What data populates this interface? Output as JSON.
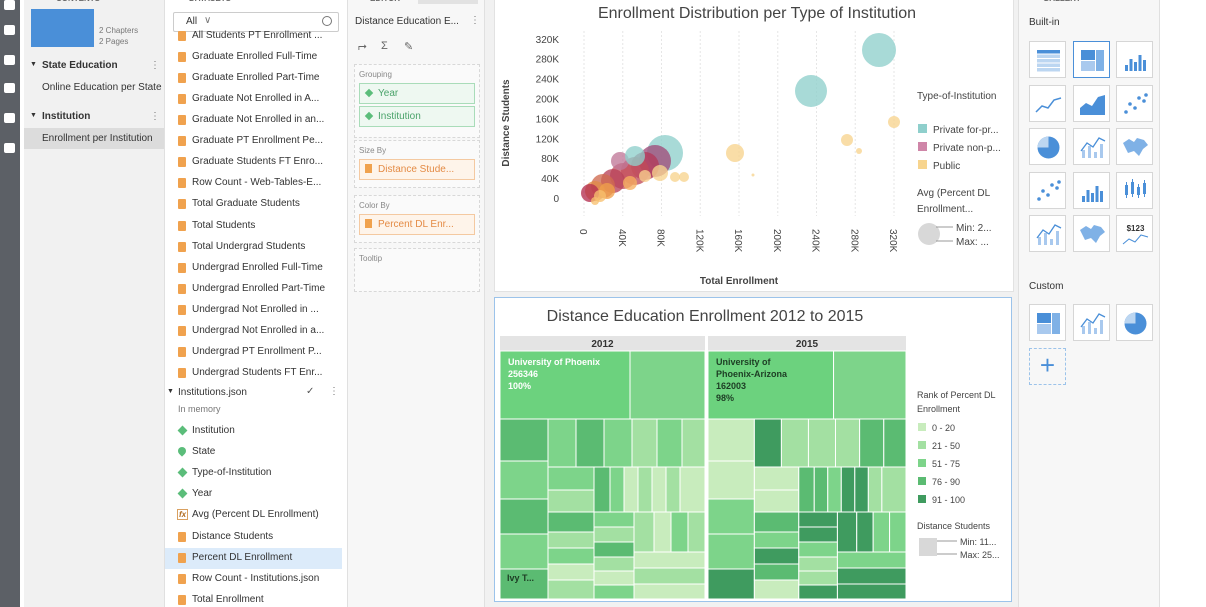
{
  "contents": {
    "header": "CONTENTS",
    "book": {
      "chapters": "2 Chapters",
      "pages": "2 Pages"
    },
    "sections": [
      {
        "title": "State Education",
        "pages": [
          "Online Education per State"
        ]
      },
      {
        "title": "Institution",
        "pages": [
          "Enrollment per Institution"
        ]
      }
    ]
  },
  "datasets": {
    "header": "DATASETS",
    "filter": "All",
    "items": [
      "All Students PT Enrollment ...",
      "Graduate Enrolled Full-Time",
      "Graduate Enrolled Part-Time",
      "Graduate Not Enrolled in A...",
      "Graduate Not Enrolled in an...",
      "Graduate PT Enrollment Pe...",
      "Graduate Students FT Enro...",
      "Row Count - Web-Tables-E...",
      "Total Graduate Students",
      "Total Students",
      "Total Undergrad Students",
      "Undergrad Enrolled Full-Time",
      "Undergrad Enrolled Part-Time",
      "Undergrad Not Enrolled in ...",
      "Undergrad Not Enrolled in a...",
      "Undergrad PT Enrollment P...",
      "Undergrad Students FT Enr..."
    ],
    "group": {
      "name": "Institutions.json",
      "storage": "In memory",
      "fields": [
        "Institution",
        "State",
        "Type-of-Institution",
        "Year",
        "Avg (Percent DL Enrollment)",
        "Distance Students",
        "Percent DL Enrollment",
        "Row Count - Institutions.json",
        "Total Enrollment"
      ]
    }
  },
  "editor": {
    "tab": "EDITOR",
    "widget_title": "Distance Education E...",
    "wells": [
      {
        "label": "Grouping",
        "items": [
          "Year",
          "Institution"
        ]
      },
      {
        "label": "Size By",
        "items": [
          "Distance Stude..."
        ]
      },
      {
        "label": "Color By",
        "items": [
          "Percent DL Enr..."
        ]
      },
      {
        "label": "Tooltip"
      }
    ]
  },
  "scatter": {
    "title": "Enrollment Distribution per Type of Institution",
    "y_axis_label": "Distance Students",
    "x_axis_label": "Total Enrollment",
    "tick_labels": [
      "0",
      "40K",
      "80K",
      "120K",
      "160K",
      "200K",
      "240K",
      "280K",
      "320K"
    ],
    "legend": {
      "title": "Type-of-Institution",
      "items": [
        {
          "label": "Private for-pr...",
          "color": "#8fcfcc"
        },
        {
          "label": "Private non-p...",
          "color": "#cf86a8"
        },
        {
          "label": "Public",
          "color": "#f7d48e"
        }
      ]
    },
    "size_legend": {
      "title": [
        "Avg (Percent DL",
        "Enrollment..."
      ],
      "min": "Min: 2...",
      "max": "Max: ..."
    }
  },
  "treemap": {
    "title": "Distance Education Enrollment 2012 to 2015",
    "panels": [
      {
        "header": "2012",
        "cell_label": [
          "University of Phoenix",
          "256346",
          "100%"
        ],
        "small_label": "Ivy T..."
      },
      {
        "header": "2015",
        "cell_label": [
          "University of",
          "Phoenix-Arizona",
          "162003",
          "98%"
        ]
      }
    ],
    "legend": {
      "title": [
        "Rank of Percent DL",
        "Enrollment"
      ],
      "items": [
        {
          "label": "0 - 20",
          "color": "#c8ecbd"
        },
        {
          "label": "21 - 50",
          "color": "#a3e0a2"
        },
        {
          "label": "51 - 75",
          "color": "#7dd48a"
        },
        {
          "label": "76 - 90",
          "color": "#5bbb72"
        },
        {
          "label": "91 - 100",
          "color": "#3f9b5f"
        }
      ]
    },
    "size_legend": {
      "title": "Distance Students",
      "min": "Min: 11...",
      "max": "Max: 25..."
    }
  },
  "gallery": {
    "header": "GALLERY",
    "builtin": "Built-in",
    "custom": "Custom",
    "kpi_text": "$123"
  }
}
